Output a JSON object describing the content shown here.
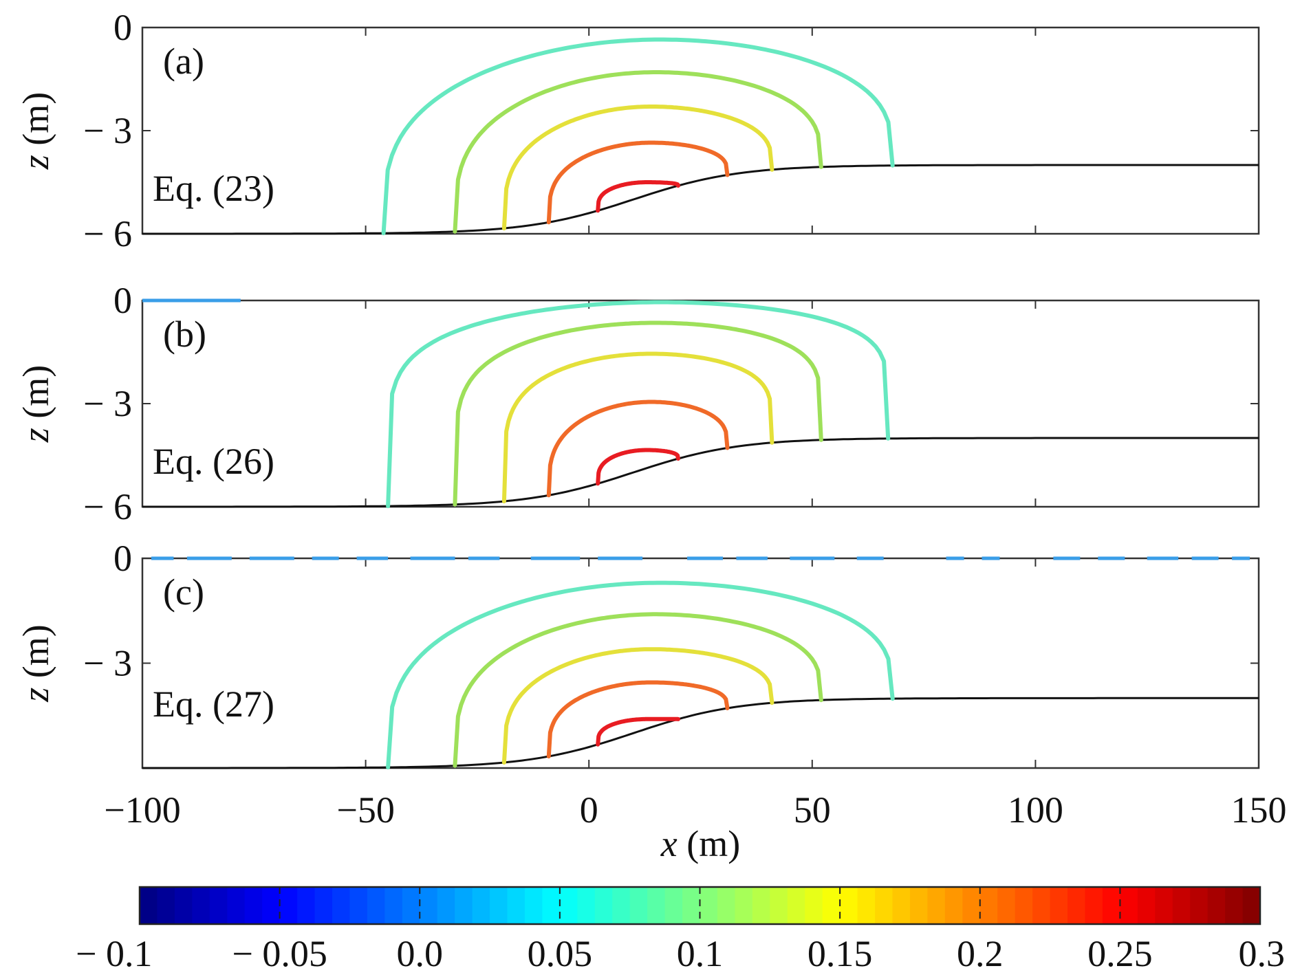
{
  "chart_data": {
    "type": "line",
    "xlabel_var": "x",
    "xlabel_unit": " (m)",
    "ylabel_var": "z",
    "ylabel_unit": " (m)",
    "xlim": [
      -100,
      150
    ],
    "ylim": [
      -6,
      0
    ],
    "xticks": [
      -100,
      -50,
      0,
      50,
      100,
      150
    ],
    "xtick_labels": [
      "−100",
      "−50",
      "0",
      "50",
      "100",
      "150"
    ],
    "yticks": [
      0,
      -3,
      -6
    ],
    "ytick_labels": [
      "0",
      "− 3",
      "− 6"
    ],
    "colorbar": {
      "range": [
        -0.1,
        0.3
      ],
      "tick_values": [
        -0.1,
        -0.05,
        0.0,
        0.05,
        0.1,
        0.15,
        0.2,
        0.25,
        0.3
      ],
      "tick_labels": [
        "− 0.1",
        "− 0.05",
        "0.0",
        "0.05",
        "0.1",
        "0.15",
        "0.2",
        "0.25",
        "0.3"
      ],
      "colormap": "jet"
    },
    "panels": [
      {
        "label": "(a)",
        "equation": "Eq. (23)",
        "bathymetry": {
          "left_depth": -6,
          "right_depth": -4,
          "center": 10,
          "width": 26
        },
        "contours": [
          {
            "value": 0.05,
            "color": "#66e8c0",
            "x_left": -46,
            "x_right": 68,
            "top": -0.35,
            "x_peak": 16,
            "sharp": 0.3
          },
          {
            "value": 0.1,
            "color": "#9ee05a",
            "x_left": -30,
            "x_right": 52,
            "top": -1.3,
            "x_peak": 15,
            "sharp": 0.3
          },
          {
            "value": 0.15,
            "color": "#e4e03a",
            "x_left": -19,
            "x_right": 41,
            "top": -2.3,
            "x_peak": 14,
            "sharp": 0.3
          },
          {
            "value": 0.2,
            "color": "#f06a28",
            "x_left": -9,
            "x_right": 31,
            "top": -3.35,
            "x_peak": 14,
            "sharp": 0.3
          },
          {
            "value": 0.25,
            "color": "#e81c22",
            "x_left": 2,
            "x_right": 20,
            "top": -4.5,
            "x_peak": 13,
            "sharp": 0.3
          }
        ],
        "surface_segments": []
      },
      {
        "label": "(b)",
        "equation": "Eq. (26)",
        "bathymetry": {
          "left_depth": -6,
          "right_depth": -4,
          "center": 10,
          "width": 26
        },
        "contours": [
          {
            "value": 0.05,
            "color": "#66e8c0",
            "x_left": -45,
            "x_right": 67,
            "top": -0.05,
            "x_peak": 16,
            "sharp": 0.16
          },
          {
            "value": 0.1,
            "color": "#9ee05a",
            "x_left": -30,
            "x_right": 52,
            "top": -0.65,
            "x_peak": 15,
            "sharp": 0.18
          },
          {
            "value": 0.15,
            "color": "#e4e03a",
            "x_left": -19,
            "x_right": 41,
            "top": -1.55,
            "x_peak": 14,
            "sharp": 0.2
          },
          {
            "value": 0.2,
            "color": "#f06a28",
            "x_left": -9,
            "x_right": 31,
            "top": -2.95,
            "x_peak": 14,
            "sharp": 0.3
          },
          {
            "value": 0.25,
            "color": "#e81c22",
            "x_left": 2,
            "x_right": 20,
            "top": -4.35,
            "x_peak": 13,
            "sharp": 0.3
          }
        ],
        "surface_segments": [
          [
            -100,
            -78
          ]
        ]
      },
      {
        "label": "(c)",
        "equation": "Eq. (27)",
        "bathymetry": {
          "left_depth": -6,
          "right_depth": -4,
          "center": 10,
          "width": 26
        },
        "contours": [
          {
            "value": 0.05,
            "color": "#66e8c0",
            "x_left": -45,
            "x_right": 68,
            "top": -0.7,
            "x_peak": 16,
            "sharp": 0.3
          },
          {
            "value": 0.1,
            "color": "#9ee05a",
            "x_left": -30,
            "x_right": 52,
            "top": -1.6,
            "x_peak": 15,
            "sharp": 0.3
          },
          {
            "value": 0.15,
            "color": "#e4e03a",
            "x_left": -19,
            "x_right": 41,
            "top": -2.6,
            "x_peak": 14,
            "sharp": 0.3
          },
          {
            "value": 0.2,
            "color": "#f06a28",
            "x_left": -9,
            "x_right": 31,
            "top": -3.55,
            "x_peak": 14,
            "sharp": 0.3
          },
          {
            "value": 0.25,
            "color": "#e81c22",
            "x_left": 2,
            "x_right": 20,
            "top": -4.6,
            "x_peak": 13,
            "sharp": 0.3
          }
        ],
        "surface_segments": [
          [
            -98,
            -93
          ],
          [
            -90,
            -80
          ],
          [
            -76,
            -66
          ],
          [
            -62,
            -56
          ],
          [
            -52,
            -45
          ],
          [
            -40,
            -30
          ],
          [
            -27,
            -20
          ],
          [
            -13,
            -2
          ],
          [
            2,
            12
          ],
          [
            22,
            30
          ],
          [
            33,
            40
          ],
          [
            45,
            55
          ],
          [
            60,
            66
          ],
          [
            80,
            84
          ],
          [
            88,
            92
          ],
          [
            104,
            110
          ],
          [
            114,
            120
          ],
          [
            125,
            132
          ],
          [
            135,
            141
          ],
          [
            144,
            148
          ]
        ]
      }
    ]
  }
}
